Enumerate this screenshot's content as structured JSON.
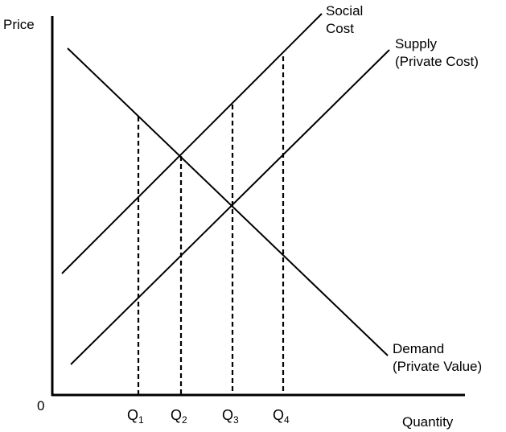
{
  "axes": {
    "y_label": "Price",
    "x_label": "Quantity",
    "origin_label": "0"
  },
  "curves": {
    "social_cost": {
      "label_line1": "Social",
      "label_line2": "Cost"
    },
    "supply": {
      "label_line1": "Supply",
      "label_line2": "(Private Cost)"
    },
    "demand": {
      "label_line1": "Demand",
      "label_line2": "(Private Value)"
    }
  },
  "quantities": [
    {
      "letter": "Q",
      "sub": "1"
    },
    {
      "letter": "Q",
      "sub": "2"
    },
    {
      "letter": "Q",
      "sub": "3"
    },
    {
      "letter": "Q",
      "sub": "4"
    }
  ]
}
